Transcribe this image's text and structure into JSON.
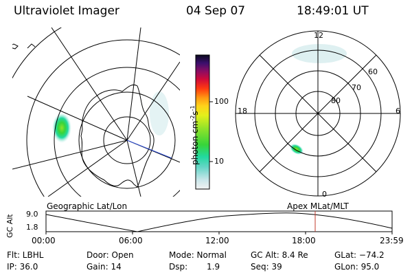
{
  "header": {
    "instrument": "Ultraviolet Imager",
    "date": "04 Sep 07",
    "time": "18:49:01 UT"
  },
  "colorbar": {
    "unit_label": "photon cm",
    "unit_exp1": "-2",
    "unit_s": "s",
    "unit_exp2": "-1",
    "tick_100": "100",
    "tick_10": "10"
  },
  "polar_plot": {
    "label_top": "12",
    "label_bottom": "0",
    "label_left": "18",
    "label_right": "6",
    "lat_60": "60",
    "lat_70": "70",
    "lat_80": "80"
  },
  "timeline": {
    "left_title": "Geographic Lat/Lon",
    "right_title": "Apex MLat/MLT",
    "ylabel": "GC Alt",
    "y_top": "9.0",
    "y_bottom": "1.8",
    "x_ticks": [
      "00:00",
      "06:00",
      "12:00",
      "18:00",
      "23:59"
    ]
  },
  "footer": {
    "filter": "Flt: LBHL",
    "ip": "IP: 36.0",
    "door": "Door: Open",
    "gain": "Gain: 14",
    "mode": "Mode: Normal",
    "dsp_label": "Dsp:",
    "dsp_value": "1.9",
    "gc_alt": "GC Alt: 8.4 Re",
    "seq": "Seq: 39",
    "glat": "GLat: −74.2",
    "glon": "GLon: 95.0"
  }
}
